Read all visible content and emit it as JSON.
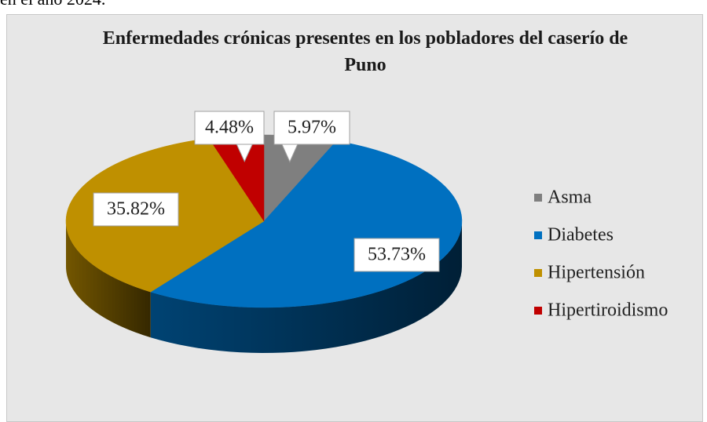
{
  "caption": "en el año 2024.",
  "chart_data": {
    "type": "pie",
    "title": "Enfermedades crónicas presentes en los pobladores del caserío de Puno",
    "categories": [
      "Asma",
      "Diabetes",
      "Hipertensión",
      "Hipertiroidismo"
    ],
    "values": [
      5.97,
      53.73,
      35.82,
      4.48
    ],
    "value_labels": [
      "5.97%",
      "53.73%",
      "35.82%",
      "4.48%"
    ],
    "colors": [
      "#7f7f7f",
      "#0070c0",
      "#bf9000",
      "#c00000"
    ],
    "legend": "right"
  }
}
